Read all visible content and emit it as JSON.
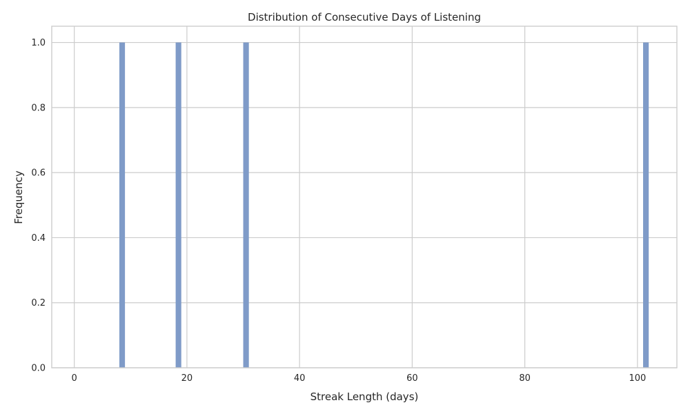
{
  "chart_data": {
    "type": "bar",
    "title": "Distribution of Consecutive Days of Listening",
    "xlabel": "Streak Length (days)",
    "ylabel": "Frequency",
    "xlim": [
      -4,
      107
    ],
    "ylim": [
      0,
      1.05
    ],
    "xticks": [
      0,
      20,
      40,
      60,
      80,
      100
    ],
    "yticks": [
      0.0,
      0.2,
      0.4,
      0.6,
      0.8,
      1.0
    ],
    "x_tick_labels": [
      "0",
      "20",
      "40",
      "60",
      "80",
      "100"
    ],
    "y_tick_labels": [
      "0.0",
      "0.2",
      "0.4",
      "0.6",
      "0.8",
      "1.0"
    ],
    "grid": true,
    "bar_color": "#7f9bc8",
    "bars": [
      {
        "x_start": 8,
        "x_end": 9,
        "value": 1
      },
      {
        "x_start": 18,
        "x_end": 19,
        "value": 1
      },
      {
        "x_start": 30,
        "x_end": 31,
        "value": 1
      },
      {
        "x_start": 101,
        "x_end": 102,
        "value": 1
      }
    ]
  }
}
